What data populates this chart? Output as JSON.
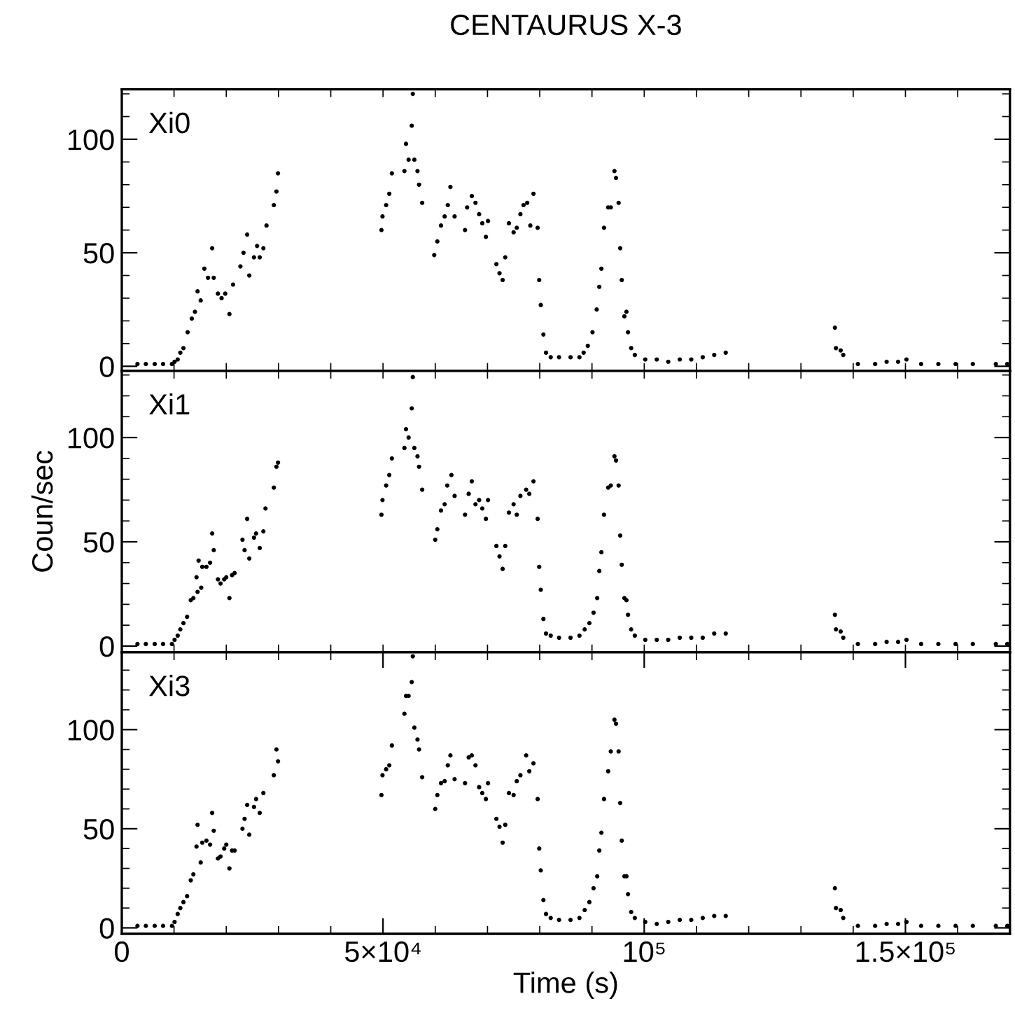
{
  "chart_data": [
    {
      "type": "scatter",
      "title": "CENTAURUS X-3",
      "annotations": [
        "Xi0"
      ],
      "marker": "circle",
      "grid": false,
      "legend": false,
      "tick_labels": "y",
      "xlim": [
        0,
        170000
      ],
      "ylim": [
        -2,
        122
      ],
      "xticks": [
        {
          "value": 0,
          "label": null
        },
        {
          "value": 10000,
          "label": null
        },
        {
          "value": 20000,
          "label": null
        },
        {
          "value": 30000,
          "label": null
        },
        {
          "value": 40000,
          "label": null
        },
        {
          "value": 50000,
          "label": null
        },
        {
          "value": 60000,
          "label": null
        },
        {
          "value": 70000,
          "label": null
        },
        {
          "value": 80000,
          "label": null
        },
        {
          "value": 90000,
          "label": null
        },
        {
          "value": 100000,
          "label": null
        },
        {
          "value": 110000,
          "label": null
        },
        {
          "value": 120000,
          "label": null
        },
        {
          "value": 130000,
          "label": null
        },
        {
          "value": 140000,
          "label": null
        },
        {
          "value": 150000,
          "label": null
        },
        {
          "value": 160000,
          "label": null
        }
      ],
      "yticks": [
        0,
        {
          "value": 10,
          "label": null
        },
        {
          "value": 20,
          "label": null
        },
        {
          "value": 30,
          "label": null
        },
        {
          "value": 40,
          "label": null
        },
        50,
        {
          "value": 60,
          "label": null
        },
        {
          "value": 70,
          "label": null
        },
        {
          "value": 80,
          "label": null
        },
        {
          "value": 90,
          "label": null
        },
        100,
        {
          "value": 110,
          "label": null
        },
        {
          "value": 120,
          "label": null
        }
      ],
      "series": [
        {
          "color": "#000000",
          "x": [
            3000,
            4600,
            6300,
            7900,
            9600,
            10100,
            10700,
            11200,
            11800,
            12600,
            13400,
            14000,
            14500,
            15100,
            15800,
            16500,
            17300,
            17600,
            18400,
            19100,
            19800,
            20600,
            21300,
            22700,
            23300,
            24000,
            24400,
            25300,
            25900,
            26400,
            27100,
            27700,
            29100,
            29600,
            29900,
            49700,
            49900,
            50600,
            51200,
            51700,
            54100,
            54400,
            54900,
            55500,
            55700,
            56000,
            56600,
            56900,
            57500,
            59800,
            60400,
            61100,
            61800,
            62400,
            62900,
            63700,
            65700,
            66100,
            67000,
            67700,
            68400,
            69000,
            69700,
            70100,
            71700,
            72300,
            72900,
            73400,
            74100,
            75000,
            75600,
            76300,
            76900,
            77600,
            78200,
            78800,
            79600,
            79900,
            80200,
            80700,
            81200,
            82100,
            83700,
            85900,
            87600,
            88400,
            89200,
            90100,
            90900,
            91400,
            91800,
            92300,
            93100,
            93600,
            94300,
            94600,
            95100,
            95400,
            95700,
            96200,
            96600,
            96900,
            97500,
            98200,
            100200,
            102400,
            104600,
            106800,
            109000,
            111200,
            113400,
            115600,
            136500,
            136700,
            137600,
            138100,
            140900,
            144200,
            146400,
            148600,
            150200,
            153000,
            156300,
            159600,
            162900,
            167300,
            169500
          ],
          "values": [
            1,
            1,
            1,
            1,
            1,
            2,
            3,
            6,
            8,
            15,
            21,
            24,
            33,
            29,
            43,
            39,
            52,
            39,
            32,
            30,
            32,
            23,
            36,
            44,
            50,
            58,
            40,
            48,
            53,
            48,
            52,
            62,
            71,
            77,
            85,
            60,
            66,
            71,
            76,
            85,
            86,
            98,
            91,
            106,
            120,
            91,
            86,
            80,
            72,
            49,
            55,
            62,
            66,
            71,
            79,
            66,
            60,
            70,
            75,
            72,
            67,
            63,
            57,
            64,
            45,
            41,
            38,
            48,
            63,
            59,
            61,
            67,
            71,
            72,
            62,
            76,
            61,
            38,
            27,
            14,
            6,
            4,
            4,
            4,
            4,
            6,
            9,
            15,
            25,
            35,
            43,
            61,
            70,
            70,
            86,
            83,
            72,
            52,
            38,
            22,
            24,
            15,
            8,
            5,
            3,
            3,
            2,
            3,
            3,
            4,
            5,
            6,
            17,
            8,
            7,
            5,
            1,
            1,
            2,
            2,
            3,
            1,
            1,
            1,
            1,
            1,
            1
          ]
        }
      ]
    },
    {
      "type": "scatter",
      "ylabel": "Coun/sec",
      "annotations": [
        "Xi1"
      ],
      "marker": "circle",
      "grid": false,
      "legend": false,
      "tick_labels": "y",
      "xlim": [
        0,
        170000
      ],
      "ylim": [
        -3,
        132
      ],
      "xticks": [
        {
          "value": 0,
          "label": null
        },
        {
          "value": 10000,
          "label": null
        },
        {
          "value": 20000,
          "label": null
        },
        {
          "value": 30000,
          "label": null
        },
        {
          "value": 40000,
          "label": null
        },
        {
          "value": 50000,
          "label": null
        },
        {
          "value": 60000,
          "label": null
        },
        {
          "value": 70000,
          "label": null
        },
        {
          "value": 80000,
          "label": null
        },
        {
          "value": 90000,
          "label": null
        },
        {
          "value": 100000,
          "label": null
        },
        {
          "value": 110000,
          "label": null
        },
        {
          "value": 120000,
          "label": null
        },
        {
          "value": 130000,
          "label": null
        },
        {
          "value": 140000,
          "label": null
        },
        {
          "value": 150000,
          "label": null
        },
        {
          "value": 160000,
          "label": null
        }
      ],
      "yticks": [
        0,
        {
          "value": 10,
          "label": null
        },
        {
          "value": 20,
          "label": null
        },
        {
          "value": 30,
          "label": null
        },
        {
          "value": 40,
          "label": null
        },
        50,
        {
          "value": 60,
          "label": null
        },
        {
          "value": 70,
          "label": null
        },
        {
          "value": 80,
          "label": null
        },
        {
          "value": 90,
          "label": null
        },
        100,
        {
          "value": 110,
          "label": null
        },
        {
          "value": 120,
          "label": null
        },
        {
          "value": 130,
          "label": null
        }
      ],
      "series": [
        {
          "color": "#000000",
          "x": [
            3000,
            4600,
            6300,
            7900,
            9600,
            10100,
            10700,
            11200,
            11800,
            12500,
            13200,
            13700,
            14300,
            14500,
            14700,
            15200,
            15400,
            16200,
            16900,
            17300,
            17600,
            18400,
            18900,
            19600,
            20000,
            20600,
            21100,
            21600,
            23100,
            23500,
            24000,
            24400,
            25300,
            25700,
            26400,
            27100,
            27500,
            29100,
            29600,
            29900,
            49700,
            49900,
            50600,
            51200,
            51700,
            54100,
            54400,
            54900,
            55500,
            55700,
            56000,
            56600,
            56900,
            57500,
            60000,
            60400,
            61100,
            61800,
            62300,
            63100,
            63700,
            65700,
            66400,
            67000,
            67700,
            68400,
            69000,
            69700,
            70100,
            71700,
            72300,
            72900,
            73400,
            74100,
            75000,
            75600,
            76300,
            77400,
            78000,
            78800,
            79600,
            79900,
            80200,
            80700,
            81200,
            82100,
            83700,
            85900,
            87600,
            88600,
            89500,
            90300,
            91000,
            91400,
            91800,
            92300,
            93100,
            93600,
            94300,
            94600,
            95100,
            95400,
            95700,
            96200,
            96600,
            96900,
            97500,
            98200,
            100200,
            102400,
            104600,
            106800,
            109000,
            111200,
            113400,
            115600,
            136500,
            136700,
            137600,
            138100,
            140900,
            144200,
            146400,
            148600,
            150200,
            153000,
            156300,
            159600,
            162900,
            167300,
            169500
          ],
          "values": [
            1,
            1,
            1,
            1,
            1,
            3,
            5,
            8,
            11,
            14,
            22,
            23,
            33,
            26,
            41,
            28,
            38,
            38,
            40,
            54,
            46,
            32,
            30,
            32,
            33,
            23,
            34,
            35,
            51,
            46,
            61,
            42,
            52,
            54,
            47,
            55,
            66,
            76,
            86,
            88,
            63,
            70,
            77,
            82,
            90,
            95,
            104,
            100,
            114,
            129,
            95,
            91,
            86,
            75,
            51,
            56,
            65,
            68,
            77,
            82,
            72,
            63,
            73,
            79,
            68,
            70,
            66,
            61,
            70,
            48,
            43,
            37,
            48,
            64,
            68,
            63,
            72,
            75,
            73,
            79,
            61,
            38,
            27,
            13,
            6,
            5,
            4,
            4,
            5,
            8,
            11,
            16,
            23,
            36,
            45,
            63,
            76,
            77,
            91,
            89,
            77,
            53,
            39,
            23,
            22,
            15,
            8,
            5,
            3,
            3,
            3,
            4,
            4,
            4,
            6,
            6,
            15,
            8,
            7,
            4,
            1,
            1,
            2,
            2,
            3,
            1,
            1,
            1,
            1,
            1,
            1
          ]
        }
      ]
    },
    {
      "type": "scatter",
      "xlabel": "Time (s)",
      "annotations": [
        "Xi3"
      ],
      "marker": "circle",
      "grid": false,
      "legend": false,
      "xlim": [
        0,
        170000
      ],
      "ylim": [
        -3,
        139
      ],
      "xticks": [
        0,
        {
          "value": 10000,
          "label": null
        },
        {
          "value": 20000,
          "label": null
        },
        {
          "value": 30000,
          "label": null
        },
        {
          "value": 40000,
          "label": null
        },
        {
          "value": 50000,
          "label": "5×10⁴"
        },
        {
          "value": 60000,
          "label": null
        },
        {
          "value": 70000,
          "label": null
        },
        {
          "value": 80000,
          "label": null
        },
        {
          "value": 90000,
          "label": null
        },
        {
          "value": 100000,
          "label": "10⁵"
        },
        {
          "value": 110000,
          "label": null
        },
        {
          "value": 120000,
          "label": null
        },
        {
          "value": 130000,
          "label": null
        },
        {
          "value": 140000,
          "label": null
        },
        {
          "value": 150000,
          "label": "1.5×10⁵"
        },
        {
          "value": 160000,
          "label": null
        }
      ],
      "yticks": [
        0,
        {
          "value": 10,
          "label": null
        },
        {
          "value": 20,
          "label": null
        },
        {
          "value": 30,
          "label": null
        },
        {
          "value": 40,
          "label": null
        },
        50,
        {
          "value": 60,
          "label": null
        },
        {
          "value": 70,
          "label": null
        },
        {
          "value": 80,
          "label": null
        },
        {
          "value": 90,
          "label": null
        },
        100,
        {
          "value": 110,
          "label": null
        },
        {
          "value": 120,
          "label": null
        },
        {
          "value": 130,
          "label": null
        }
      ],
      "series": [
        {
          "color": "#000000",
          "x": [
            3000,
            4600,
            6300,
            7900,
            9600,
            10100,
            10700,
            11200,
            11800,
            12500,
            13200,
            13700,
            14300,
            14500,
            15100,
            15400,
            16200,
            16900,
            17300,
            17600,
            18400,
            18900,
            19600,
            20000,
            20600,
            21100,
            21600,
            23100,
            23500,
            24000,
            24400,
            25300,
            25700,
            26400,
            27100,
            29100,
            29600,
            29900,
            49700,
            49900,
            50600,
            51200,
            51700,
            54100,
            54400,
            54900,
            55500,
            55700,
            56000,
            56600,
            56900,
            57500,
            60000,
            60400,
            61100,
            61800,
            62400,
            62900,
            63700,
            65700,
            66400,
            67000,
            67700,
            68400,
            69000,
            69700,
            70100,
            71700,
            72300,
            72900,
            73400,
            74100,
            75000,
            75600,
            76300,
            77400,
            78000,
            78800,
            79600,
            79900,
            80200,
            80700,
            81200,
            82100,
            83700,
            85900,
            87600,
            88600,
            89500,
            90300,
            91000,
            91400,
            91800,
            92300,
            93100,
            93600,
            94300,
            94600,
            95100,
            95400,
            95700,
            96200,
            96600,
            96900,
            97500,
            98200,
            100200,
            102400,
            104600,
            106800,
            109000,
            111200,
            113400,
            115600,
            136500,
            136700,
            137600,
            138100,
            140900,
            144200,
            146400,
            148600,
            150200,
            153000,
            156300,
            159600,
            162900,
            167300,
            169500
          ],
          "values": [
            1,
            1,
            1,
            1,
            1,
            3,
            7,
            10,
            13,
            16,
            24,
            27,
            41,
            52,
            33,
            43,
            44,
            42,
            58,
            49,
            35,
            36,
            40,
            42,
            30,
            39,
            39,
            50,
            55,
            62,
            47,
            61,
            65,
            58,
            68,
            77,
            90,
            84,
            67,
            77,
            80,
            82,
            92,
            108,
            117,
            117,
            124,
            137,
            101,
            95,
            90,
            76,
            60,
            67,
            73,
            74,
            82,
            87,
            75,
            73,
            86,
            87,
            82,
            71,
            68,
            65,
            73,
            55,
            51,
            43,
            52,
            68,
            67,
            74,
            77,
            87,
            79,
            83,
            65,
            40,
            29,
            14,
            7,
            5,
            4,
            4,
            5,
            9,
            13,
            20,
            26,
            39,
            48,
            65,
            79,
            89,
            105,
            103,
            89,
            63,
            44,
            26,
            26,
            17,
            8,
            5,
            3,
            2,
            3,
            4,
            4,
            5,
            6,
            6,
            20,
            10,
            9,
            5,
            1,
            1,
            2,
            2,
            3,
            1,
            1,
            1,
            1,
            1,
            1
          ]
        }
      ]
    }
  ]
}
